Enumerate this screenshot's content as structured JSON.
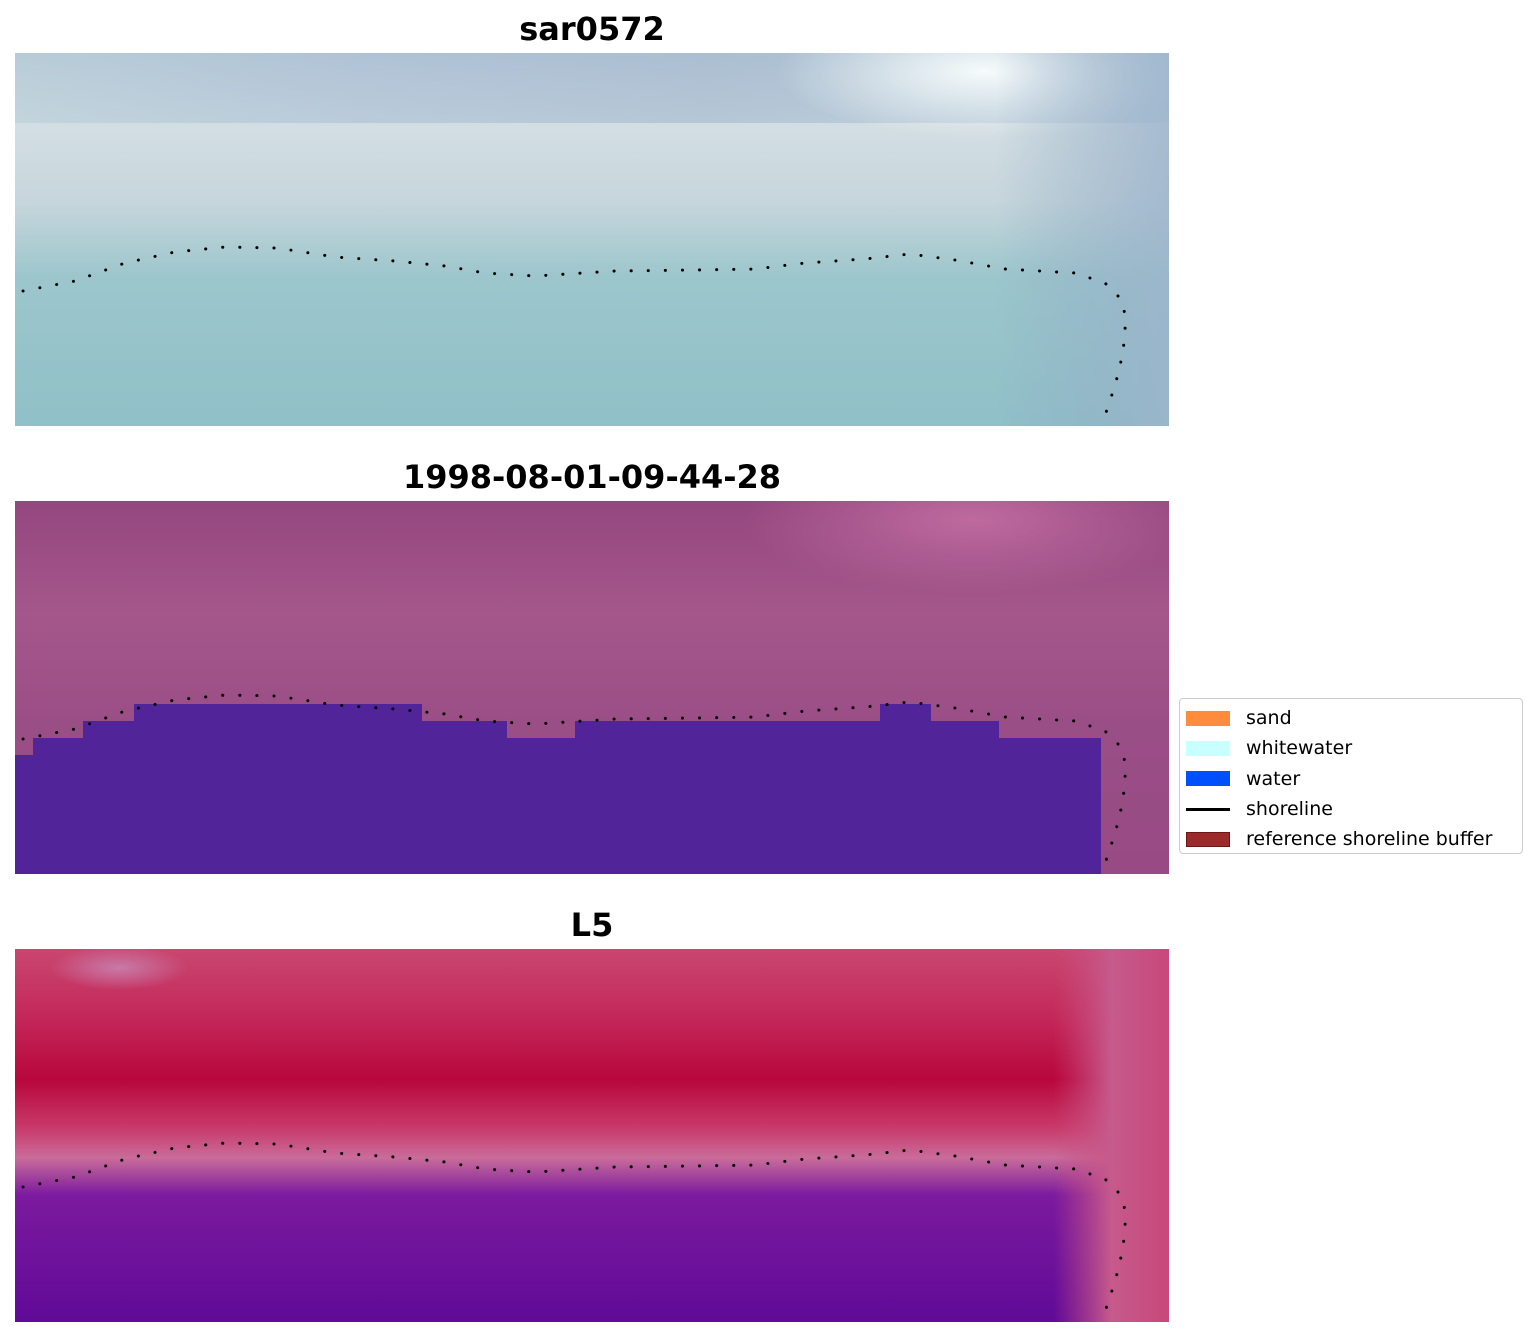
{
  "panels": [
    {
      "title": "sar0572",
      "kind": "rgb"
    },
    {
      "title": "1998-08-01-09-44-28",
      "kind": "classified"
    },
    {
      "title": "L5",
      "kind": "mndwi"
    }
  ],
  "legend": {
    "items": [
      {
        "label": "sand",
        "type": "patch",
        "color": "#ff8c3c"
      },
      {
        "label": "whitewater",
        "type": "patch",
        "color": "#c8ffff"
      },
      {
        "label": "water",
        "type": "patch",
        "color": "#0050ff"
      },
      {
        "label": "shoreline",
        "type": "line",
        "color": "#000000"
      },
      {
        "label": "reference shoreline buffer",
        "type": "patch",
        "color": "#9b2a2a",
        "edge": "#6e1515"
      }
    ]
  },
  "colors": {
    "classified_water": "#52249a",
    "shoreline_dots": "#000000"
  }
}
